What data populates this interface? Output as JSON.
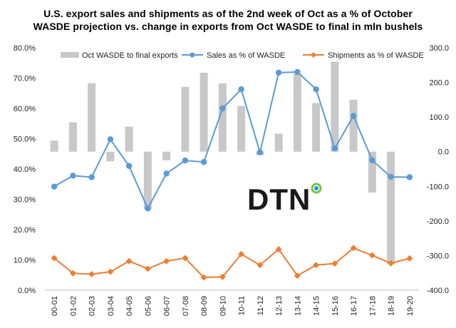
{
  "chart_data": {
    "type": "bar+line",
    "title_line1": "U.S. export sales and shipments as of the 2nd week of Oct as a %  of October",
    "title_line2": "WASDE  projection vs. change in exports from Oct WASDE to final in mln bushels",
    "categories": [
      "00-01",
      "01-02",
      "02-03",
      "03-04",
      "04-05",
      "05-06",
      "06-07",
      "07-08",
      "08-09",
      "09-10",
      "10-11",
      "11-12",
      "12-13",
      "13-14",
      "14-15",
      "15-16",
      "16-17",
      "17-18",
      "18-19",
      "19-20"
    ],
    "left_axis": {
      "min": 0,
      "max": 80,
      "step": 10,
      "tick_labels": [
        "0.0%",
        "10.0%",
        "20.0%",
        "30.0%",
        "40.0%",
        "50.0%",
        "60.0%",
        "70.0%",
        "80.0%"
      ]
    },
    "right_axis": {
      "min": -400,
      "max": 300,
      "step": 100,
      "tick_labels": [
        "-400.0",
        "-300.0",
        "-200.0",
        "-100.0",
        "0.0",
        "100.0",
        "200.0",
        "300.0"
      ]
    },
    "series": [
      {
        "name": "Oct WASDE to final exports",
        "type": "bar",
        "axis": "right",
        "color": "#c8c8c8",
        "values": [
          32,
          85,
          198,
          -28,
          72,
          -165,
          -25,
          187,
          228,
          197,
          132,
          -10,
          52,
          225,
          140,
          260,
          150,
          -118,
          -325,
          0
        ]
      },
      {
        "name": "Sales as % of WASDE",
        "type": "line",
        "axis": "left",
        "color": "#5b9bd5",
        "values": [
          34.2,
          37.8,
          37.3,
          49.8,
          41.0,
          27.0,
          38.5,
          42.8,
          42.3,
          60.0,
          66.3,
          45.5,
          71.8,
          72.0,
          66.3,
          46.8,
          57.5,
          42.9,
          37.4,
          37.3
        ]
      },
      {
        "name": "Shipments as % of WASDE",
        "type": "line",
        "axis": "left",
        "color": "#ed7d31",
        "values": [
          10.6,
          5.6,
          5.3,
          6.1,
          9.6,
          7.1,
          9.6,
          10.6,
          4.2,
          4.4,
          11.9,
          8.3,
          13.5,
          4.8,
          8.3,
          8.8,
          13.9,
          11.5,
          8.9,
          10.5
        ]
      }
    ],
    "legend_position": "top",
    "grid": false
  },
  "watermark": {
    "text": "DTN",
    "ring_colors": [
      "#7ac143",
      "#00a3e0"
    ]
  }
}
